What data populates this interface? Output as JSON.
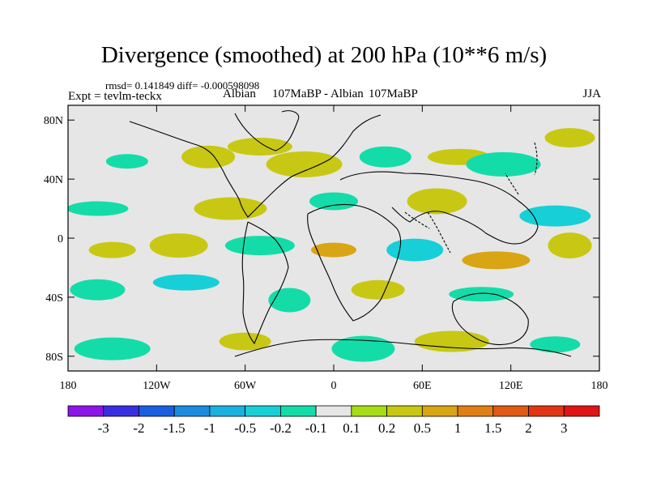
{
  "title": "Divergence (smoothed) at 200 hPa (10**6 m/s)",
  "stats": "rmsd= 0.141849 diff= -0.000598098",
  "experiment": "Expt = tevlm-teckx",
  "case_left": "Albian",
  "case_middle": "107MaBP - Albian",
  "case_right": "107MaBP",
  "season": "JJA",
  "y_axis_labels": [
    "80N",
    "40N",
    "0",
    "40S",
    "80S"
  ],
  "x_axis_labels": [
    "180",
    "120W",
    "60W",
    "0",
    "60E",
    "120E",
    "180"
  ],
  "colorbar": {
    "labels": [
      "-3",
      "-2",
      "-1.5",
      "-1",
      "-0.5",
      "-0.2",
      "-0.1",
      "0.1",
      "0.2",
      "0.5",
      "1",
      "1.5",
      "2",
      "3"
    ],
    "colors": [
      "#8f14e8",
      "#3a2fe0",
      "#1a5fe0",
      "#1a8be0",
      "#1ab0e0",
      "#17cfd6",
      "#14dca8",
      "#e6e6e6",
      "#a6dd14",
      "#c8c814",
      "#d9a514",
      "#e07f14",
      "#e05a14",
      "#e03614",
      "#e01414"
    ]
  },
  "chart_data": {
    "type": "heatmap",
    "title": "Divergence (smoothed) at 200 hPa (10**6 m/s)",
    "x_range_deg_lon": [
      -180,
      180
    ],
    "y_range_deg_lat": [
      -90,
      90
    ],
    "x_ticks": [
      "180",
      "120W",
      "60W",
      "0",
      "60E",
      "120E",
      "180"
    ],
    "y_ticks": [
      "80N",
      "40N",
      "0",
      "40S",
      "80S"
    ],
    "levels": [
      -3,
      -2,
      -1.5,
      -1,
      -0.5,
      -0.2,
      -0.1,
      0.1,
      0.2,
      0.5,
      1,
      1.5,
      2,
      3
    ],
    "patches": [
      {
        "lon": -140,
        "lat": 52,
        "value": -0.2
      },
      {
        "lon": -85,
        "lat": 55,
        "value": 0.2
      },
      {
        "lon": -50,
        "lat": 62,
        "value": 0.2
      },
      {
        "lon": -20,
        "lat": 50,
        "value": 0.2
      },
      {
        "lon": 35,
        "lat": 55,
        "value": -0.2
      },
      {
        "lon": 85,
        "lat": 55,
        "value": 0.2
      },
      {
        "lon": 115,
        "lat": 50,
        "value": -0.2
      },
      {
        "lon": 160,
        "lat": 68,
        "value": 0.2
      },
      {
        "lon": -160,
        "lat": 20,
        "value": -0.2
      },
      {
        "lon": -70,
        "lat": 20,
        "value": 0.2
      },
      {
        "lon": 0,
        "lat": 25,
        "value": -0.2
      },
      {
        "lon": 70,
        "lat": 25,
        "value": 0.2
      },
      {
        "lon": 150,
        "lat": 15,
        "value": -0.5
      },
      {
        "lon": -150,
        "lat": -8,
        "value": 0.2
      },
      {
        "lon": -105,
        "lat": -5,
        "value": 0.2
      },
      {
        "lon": -50,
        "lat": -5,
        "value": -0.2
      },
      {
        "lon": 0,
        "lat": -8,
        "value": 0.5
      },
      {
        "lon": 55,
        "lat": -8,
        "value": -0.5
      },
      {
        "lon": 110,
        "lat": -15,
        "value": 0.5
      },
      {
        "lon": 160,
        "lat": -5,
        "value": 0.2
      },
      {
        "lon": -160,
        "lat": -35,
        "value": -0.2
      },
      {
        "lon": -100,
        "lat": -30,
        "value": -0.5
      },
      {
        "lon": -30,
        "lat": -42,
        "value": -0.2
      },
      {
        "lon": 30,
        "lat": -35,
        "value": 0.2
      },
      {
        "lon": 100,
        "lat": -38,
        "value": -0.2
      },
      {
        "lon": -150,
        "lat": -75,
        "value": -0.2
      },
      {
        "lon": -60,
        "lat": -70,
        "value": 0.2
      },
      {
        "lon": 20,
        "lat": -75,
        "value": -0.2
      },
      {
        "lon": 80,
        "lat": -70,
        "value": 0.2
      },
      {
        "lon": 150,
        "lat": -72,
        "value": -0.2
      }
    ]
  }
}
